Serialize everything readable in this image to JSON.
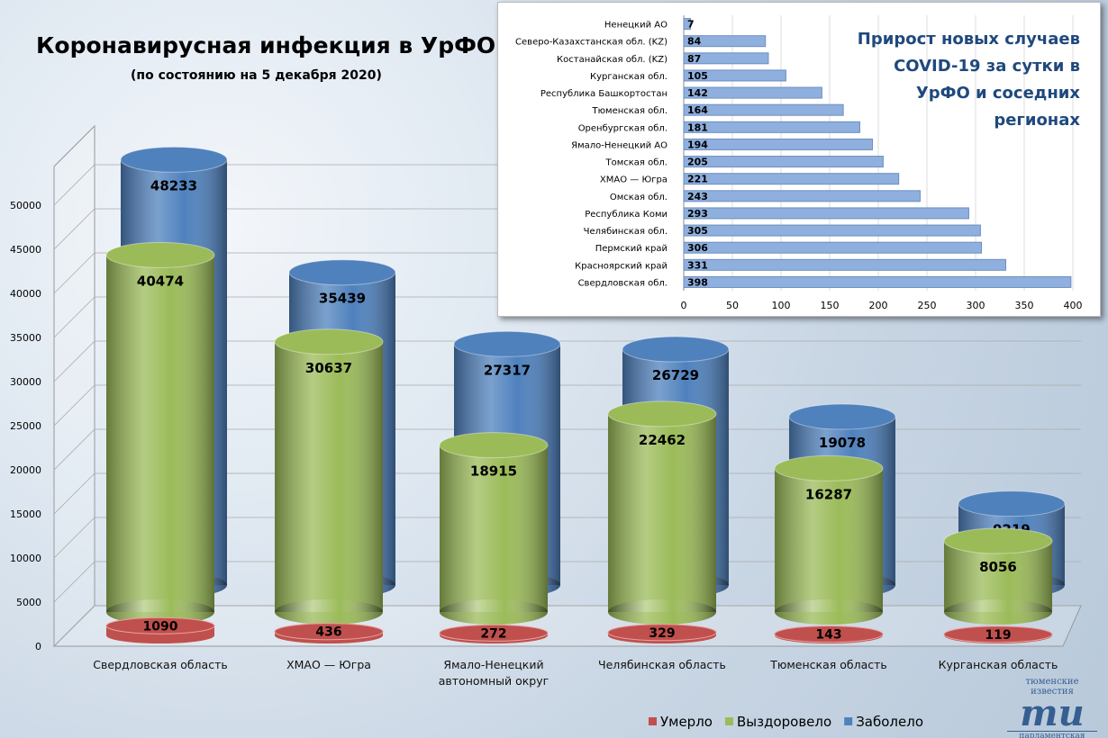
{
  "chart_data": [
    {
      "type": "cylinder",
      "title": "Коронавирусная инфекция в УрФО",
      "subtitle": "(по состоянию на 5 декабря 2020)",
      "categories": [
        "Свердловская область",
        "ХМАО — Югра",
        "Ямало-Ненецкий автономный округ",
        "Челябинская область",
        "Тюменская область",
        "Курганская область"
      ],
      "series": [
        {
          "name": "Умерло",
          "color": "#c0504d",
          "values": [
            1090,
            436,
            272,
            329,
            143,
            119
          ]
        },
        {
          "name": "Выздоровело",
          "color": "#9bbb59",
          "values": [
            40474,
            30637,
            18915,
            22462,
            16287,
            8056
          ]
        },
        {
          "name": "Заболело",
          "color": "#4f81bd",
          "values": [
            48233,
            35439,
            27317,
            26729,
            19078,
            9219
          ]
        }
      ],
      "ylim": [
        0,
        50000
      ],
      "yticks": [
        0,
        5000,
        10000,
        15000,
        20000,
        25000,
        30000,
        35000,
        40000,
        45000,
        50000
      ],
      "grid": true,
      "legend": "bottom-right"
    },
    {
      "type": "hbar",
      "title": "Прирост новых случаев COVID-19 за сутки в УрФО и соседних регионах",
      "categories": [
        "Ненецкий АО",
        "Северо-Казахстанская обл. (KZ)",
        "Костанайская обл. (KZ)",
        "Курганская обл.",
        "Республика Башкортостан",
        "Тюменская обл.",
        "Оренбургская обл.",
        "Ямало-Ненецкий АО",
        "Томская обл.",
        "ХМАО — Югра",
        "Омская обл.",
        "Республика Коми",
        "Челябинская обл.",
        "Пермский край",
        "Красноярский край",
        "Свердловская обл."
      ],
      "values": [
        7,
        84,
        87,
        105,
        142,
        164,
        181,
        194,
        205,
        221,
        243,
        293,
        305,
        306,
        331,
        398
      ],
      "color": "#8fb0de",
      "xlim": [
        0,
        400
      ],
      "xticks": [
        0,
        50,
        100,
        150,
        200,
        250,
        300,
        350,
        400
      ],
      "grid": true
    }
  ],
  "logo": {
    "top": "тюменские известия",
    "mark": "ти",
    "bottom": "парламентская газета"
  }
}
